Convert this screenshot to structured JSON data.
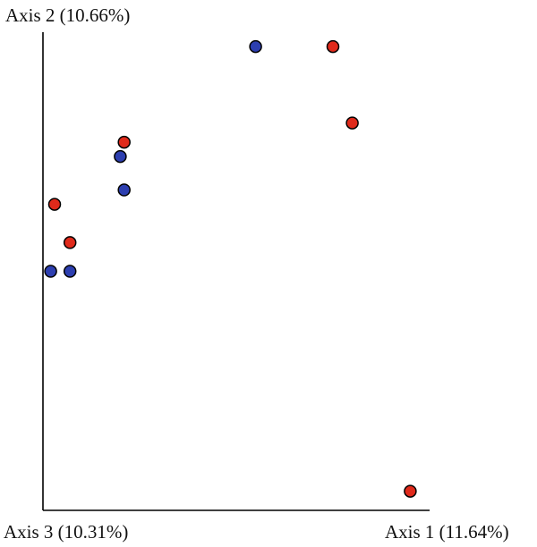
{
  "chart_data": {
    "type": "scatter",
    "axes": {
      "axis1_label": "Axis 1 (11.64%)",
      "axis2_label": "Axis 2 (10.66%)",
      "axis3_label": "Axis 3 (10.31%)"
    },
    "grid": false,
    "legend": "none",
    "colors": {
      "red": "#e02a1b",
      "blue": "#2d3fb0"
    },
    "points": [
      {
        "x": 0.55,
        "y": 0.97,
        "color": "blue"
      },
      {
        "x": 0.75,
        "y": 0.97,
        "color": "red"
      },
      {
        "x": 0.8,
        "y": 0.81,
        "color": "red"
      },
      {
        "x": 0.21,
        "y": 0.77,
        "color": "red"
      },
      {
        "x": 0.2,
        "y": 0.74,
        "color": "blue"
      },
      {
        "x": 0.21,
        "y": 0.67,
        "color": "blue"
      },
      {
        "x": 0.03,
        "y": 0.64,
        "color": "red"
      },
      {
        "x": 0.07,
        "y": 0.56,
        "color": "red"
      },
      {
        "x": 0.07,
        "y": 0.5,
        "color": "blue"
      },
      {
        "x": 0.02,
        "y": 0.5,
        "color": "blue"
      },
      {
        "x": 0.95,
        "y": 0.04,
        "color": "red"
      }
    ]
  }
}
